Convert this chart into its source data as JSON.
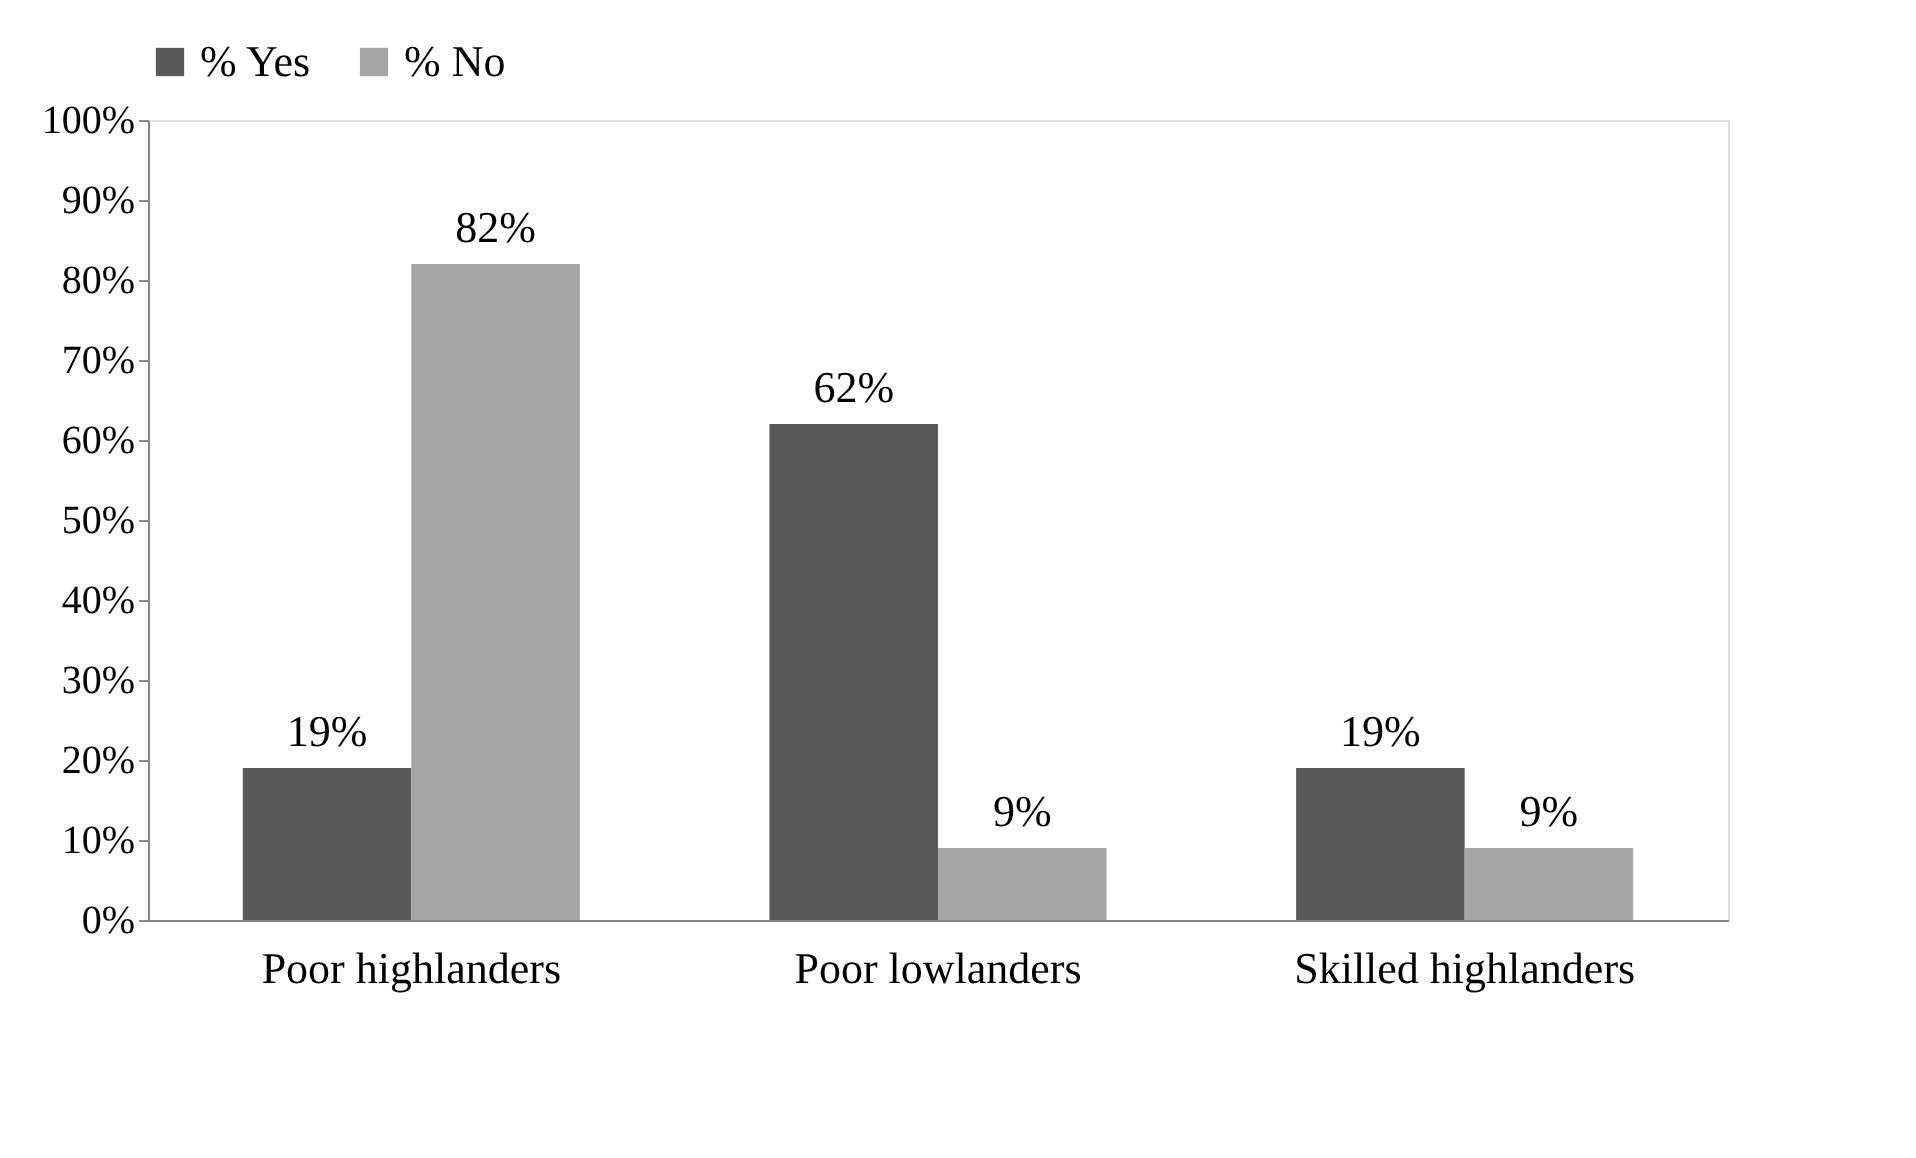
{
  "chart_data": {
    "type": "bar",
    "categories": [
      "Poor highlanders",
      "Poor lowlanders",
      "Skilled highlanders"
    ],
    "series": [
      {
        "name": "% Yes",
        "color": "#595959",
        "values": [
          19,
          62,
          19
        ],
        "value_labels": [
          "19%",
          "62%",
          "19%"
        ]
      },
      {
        "name": "% No",
        "color": "#a6a6a6",
        "values": [
          82,
          9,
          9
        ],
        "value_labels": [
          "82%",
          "9%",
          "9%"
        ]
      }
    ],
    "ylim": [
      0,
      100
    ],
    "yticks": [
      {
        "value": 0,
        "label": "0%"
      },
      {
        "value": 10,
        "label": "10%"
      },
      {
        "value": 20,
        "label": "20%"
      },
      {
        "value": 30,
        "label": "30%"
      },
      {
        "value": 40,
        "label": "40%"
      },
      {
        "value": 50,
        "label": "50%"
      },
      {
        "value": 60,
        "label": "60%"
      },
      {
        "value": 70,
        "label": "70%"
      },
      {
        "value": 80,
        "label": "80%"
      },
      {
        "value": 90,
        "label": "90%"
      },
      {
        "value": 100,
        "label": "100%"
      }
    ],
    "grid": false,
    "legend": "top"
  }
}
